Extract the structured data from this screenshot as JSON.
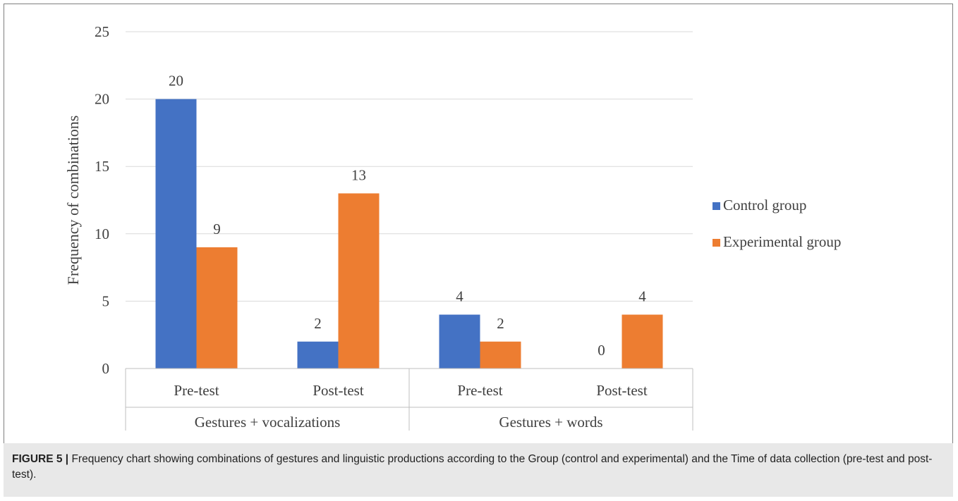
{
  "figure": {
    "label": "FIGURE 5 |",
    "caption": " Frequency chart showing combinations of gestures and linguistic productions according to the Group (control and experimental) and the Time of data collection (pre-test and post-test)."
  },
  "chart_data": {
    "type": "bar",
    "ylabel": "Frequency of combinations",
    "ylim": [
      0,
      25
    ],
    "yticks": [
      0,
      5,
      10,
      15,
      20,
      25
    ],
    "grid": true,
    "legend_position": "right",
    "groups": [
      {
        "label": "Gestures + vocalizations",
        "categories": [
          "Pre-test",
          "Post-test"
        ]
      },
      {
        "label": "Gestures + words",
        "categories": [
          "Pre-test",
          "Post-test"
        ]
      }
    ],
    "categories": [
      "Pre-test",
      "Post-test",
      "Pre-test",
      "Post-test"
    ],
    "series": [
      {
        "name": "Control group",
        "color": "#4472c4",
        "values": [
          20,
          2,
          4,
          0
        ]
      },
      {
        "name": "Experimental group",
        "color": "#ed7d31",
        "values": [
          9,
          13,
          2,
          4
        ]
      }
    ]
  }
}
